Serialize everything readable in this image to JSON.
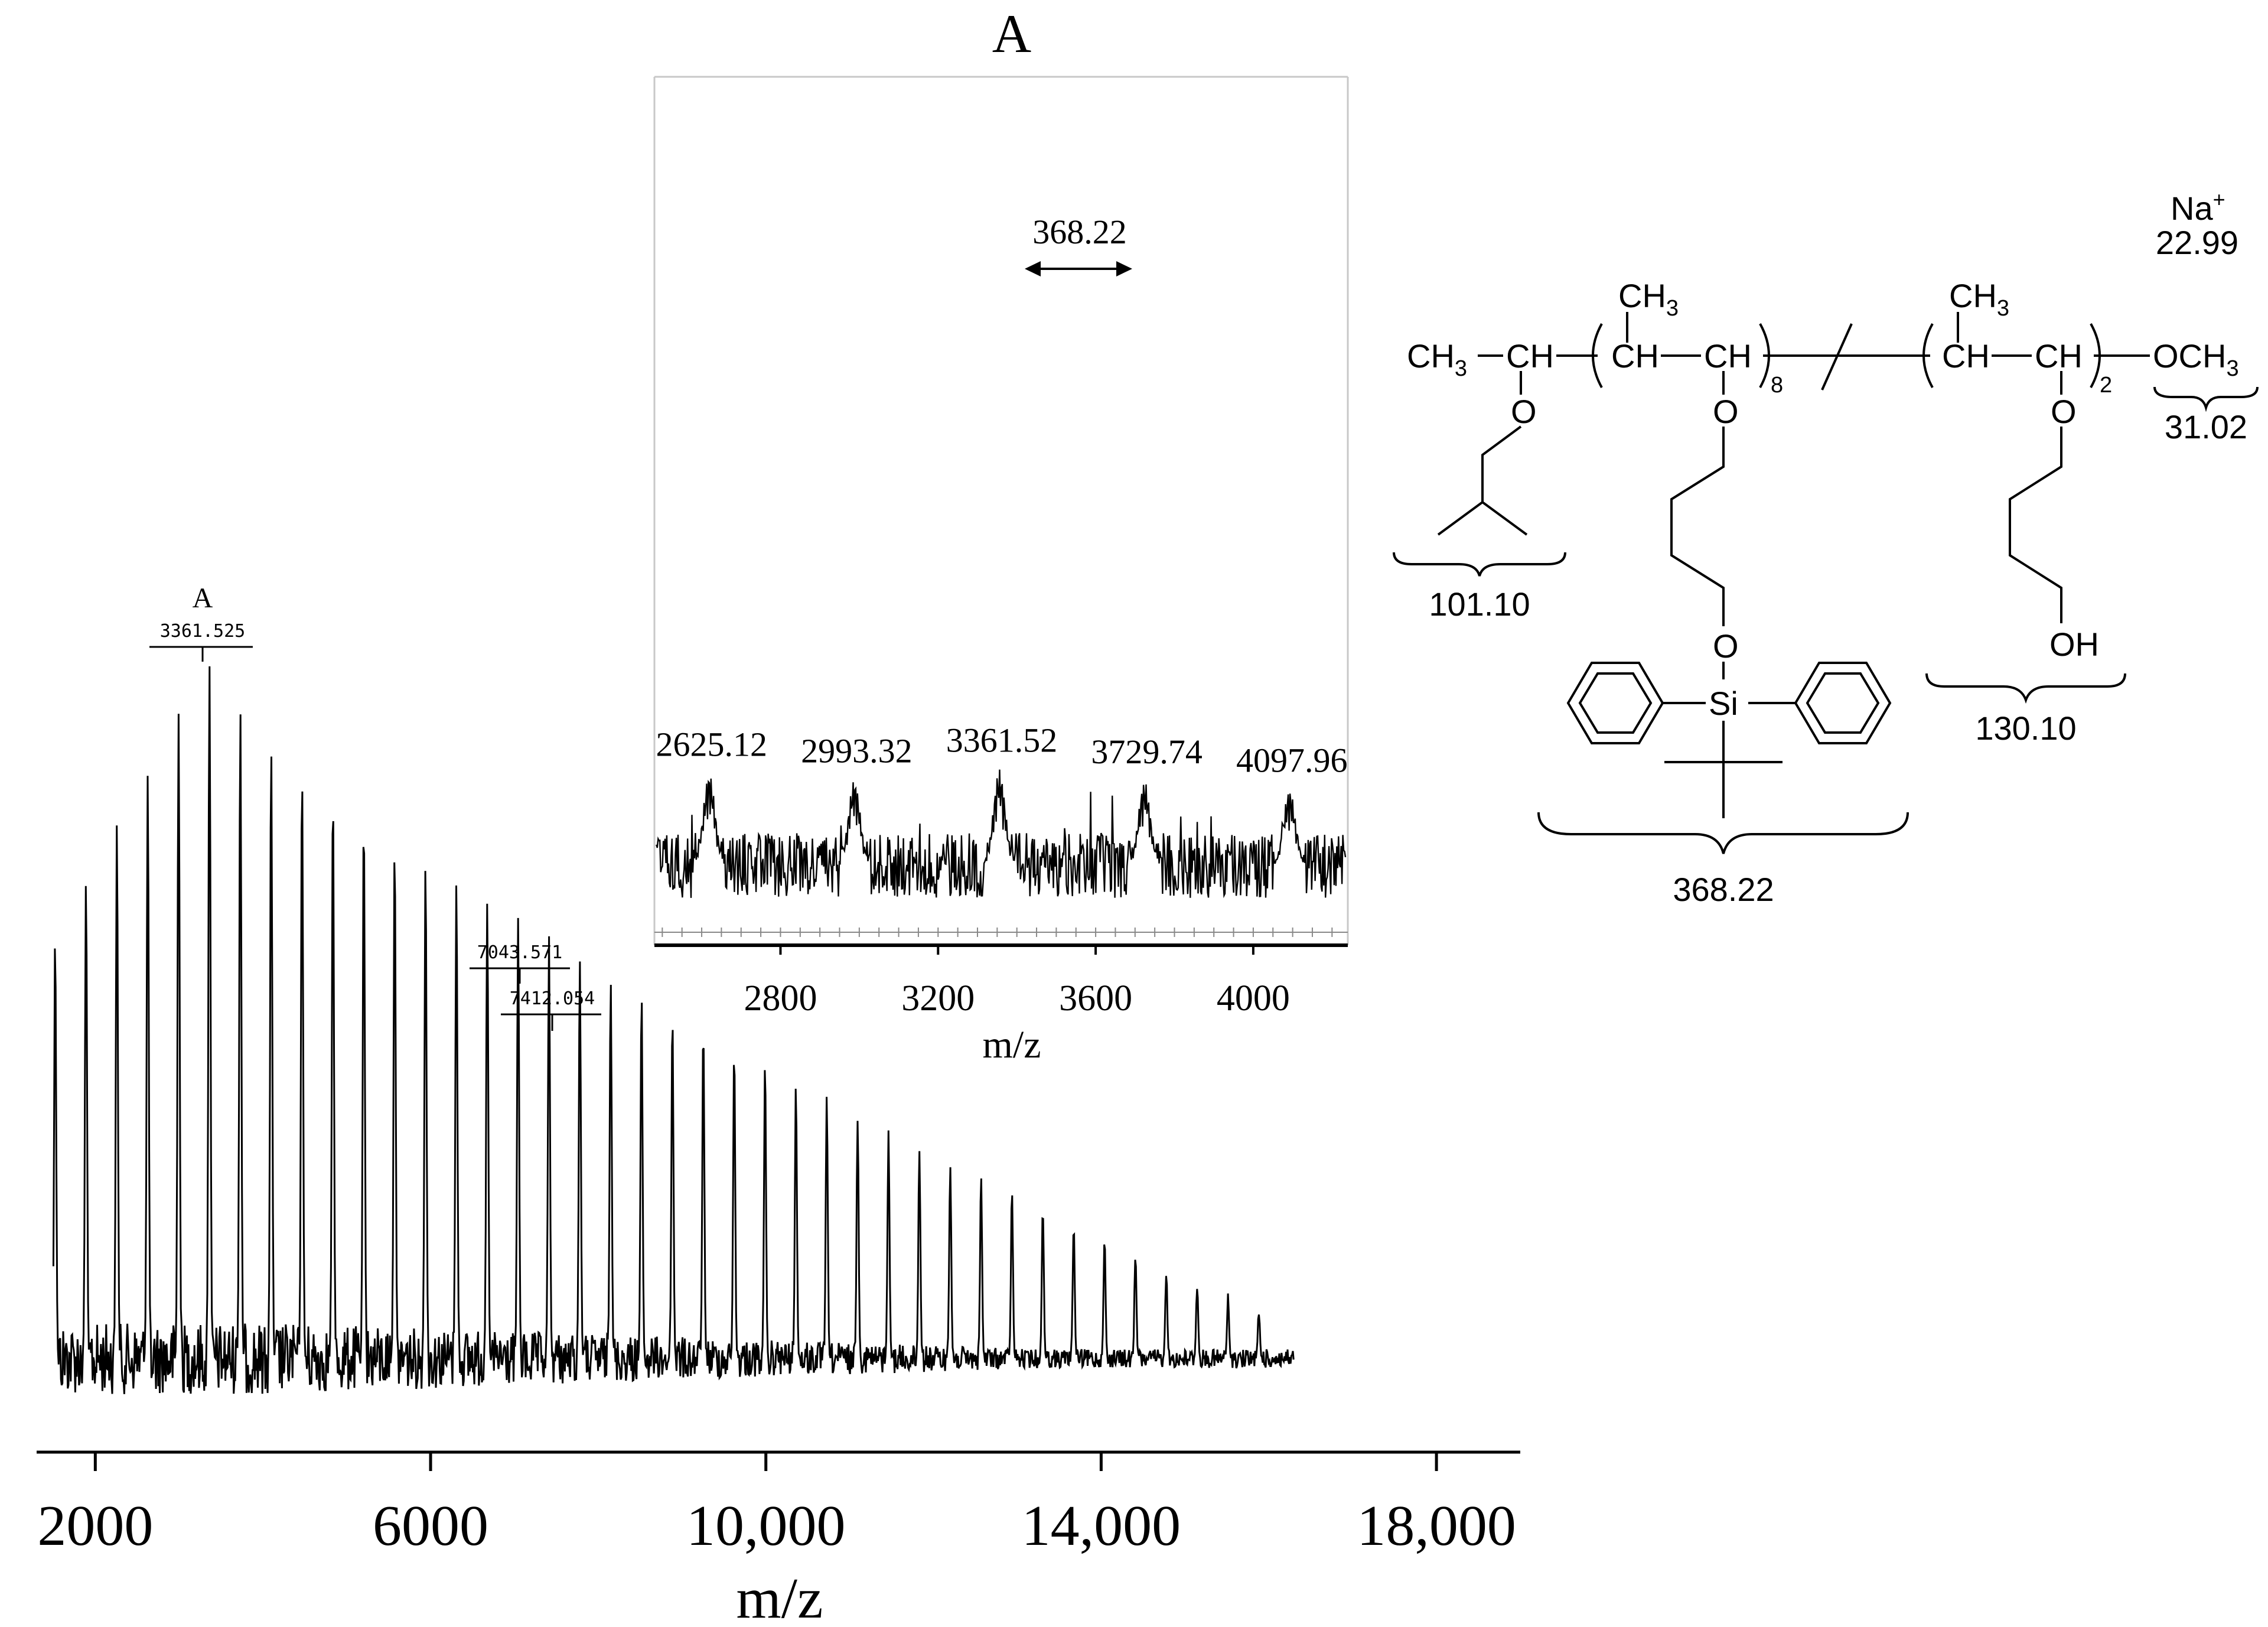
{
  "chart_data": [
    {
      "type": "line",
      "name": "main-spectrum",
      "xlabel": "m/z",
      "xlim": [
        1300,
        19000
      ],
      "xticks": [
        2000,
        6000,
        10000,
        14000,
        18000
      ],
      "xtick_labels": [
        "2000",
        "6000",
        "10,000",
        "14,000",
        "18,000"
      ],
      "series_A_label": "A",
      "peak_spacing": 368.22,
      "peaks_start": 1521,
      "peaks_end": 16000,
      "max_peak": 3361.525,
      "annotated_peaks": [
        {
          "mz": 3361.525,
          "label": "3361.525",
          "group": "A"
        },
        {
          "mz": 7043.571,
          "label": "7043.571"
        },
        {
          "mz": 7412.054,
          "label": "7412.054"
        }
      ]
    },
    {
      "type": "line",
      "name": "inset-spectrum",
      "title": "A",
      "xlabel": "m/z",
      "xlim": [
        2480,
        4240
      ],
      "xticks": [
        2800,
        3200,
        3600,
        4000
      ],
      "xtick_labels": [
        "2800",
        "3200",
        "3600",
        "4000"
      ],
      "peaks": [
        {
          "mz": 2625.12,
          "label": "2625.12",
          "rel": 0.86
        },
        {
          "mz": 2993.32,
          "label": "2993.32",
          "rel": 0.8
        },
        {
          "mz": 3361.52,
          "label": "3361.52",
          "rel": 0.9
        },
        {
          "mz": 3729.74,
          "label": "3729.74",
          "rel": 0.79
        },
        {
          "mz": 4097.96,
          "label": "4097.96",
          "rel": 0.71
        }
      ],
      "spacing_label": "368.22"
    }
  ],
  "structure": {
    "cation": "Na",
    "cation_charge": "+",
    "cation_mass": "22.99",
    "end_group_left": "CH",
    "end_group_left_sub": "3",
    "ch": "CH",
    "methyl": "CH",
    "methyl_sub": "3",
    "repeat_n1": "8",
    "repeat_n2": "2",
    "end_group_right": "OCH",
    "end_group_right_sub": "3",
    "oxygen": "O",
    "silicon": "Si",
    "hydroxyl": "OH",
    "mass_isobutyl": "101.10",
    "mass_repeat_silyl": "368.22",
    "mass_repeat_hydroxy": "130.10",
    "mass_methoxy": "31.02"
  }
}
